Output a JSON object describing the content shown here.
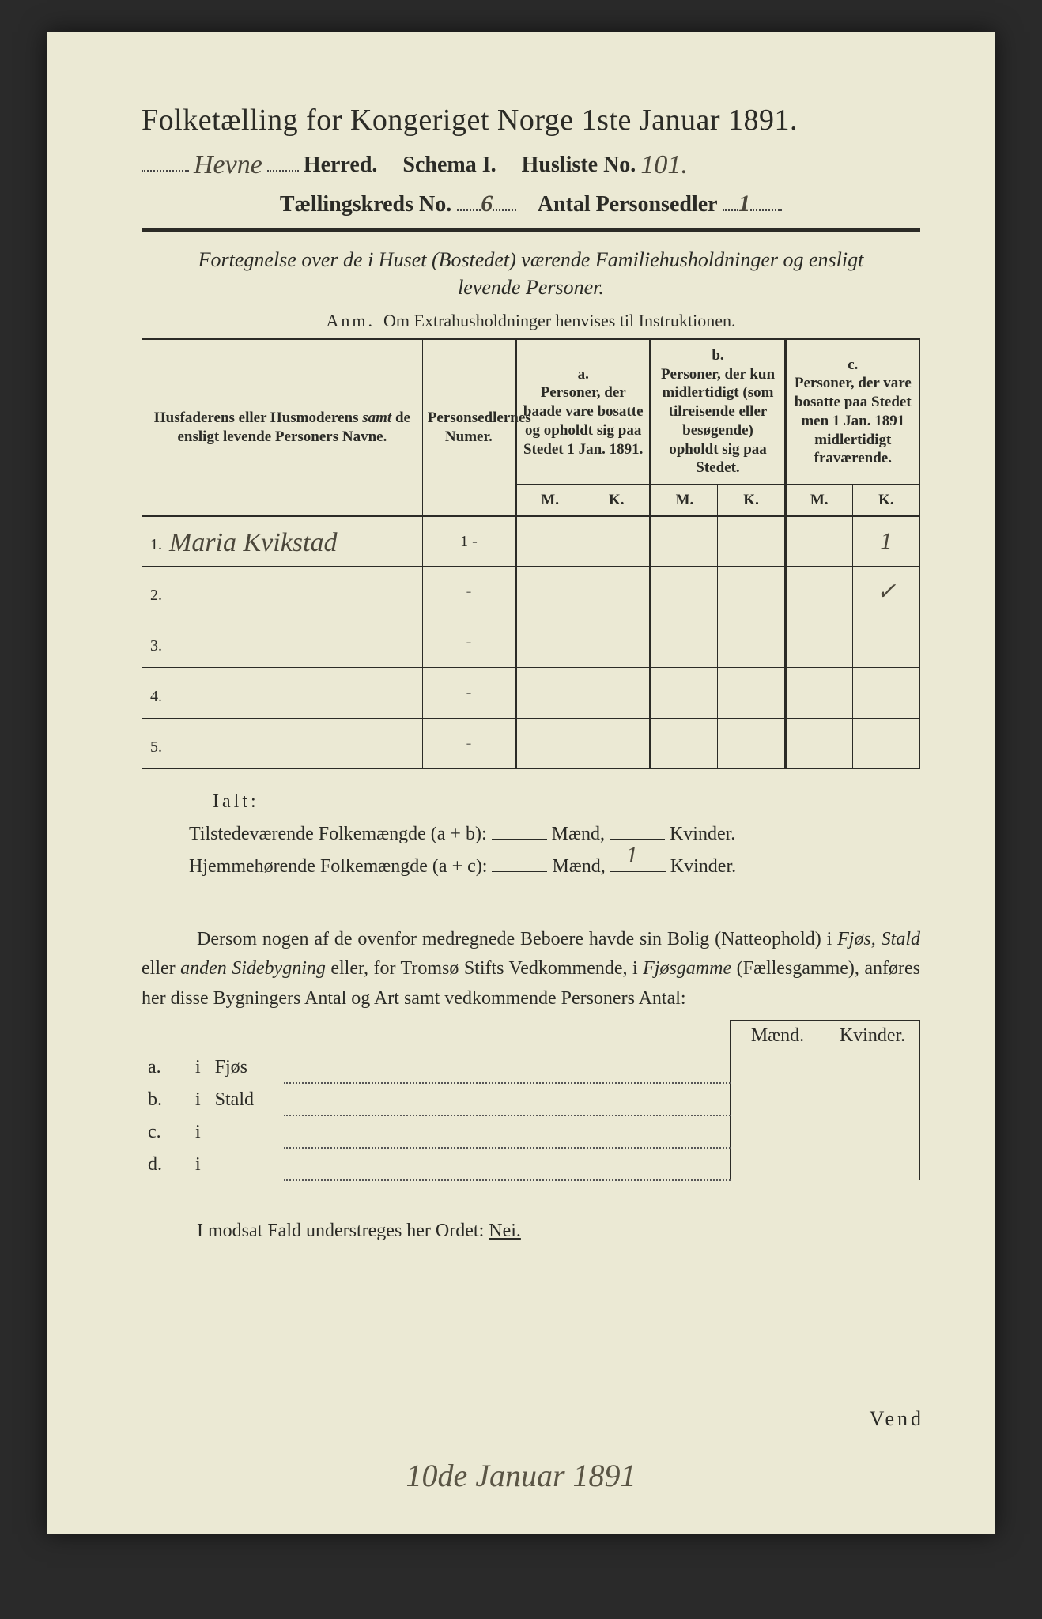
{
  "header": {
    "title": "Folketælling for Kongeriget Norge 1ste Januar 1891.",
    "herred_hand": "Hevne",
    "herred_label": "Herred.",
    "schema": "Schema I.",
    "husliste_label": "Husliste No.",
    "husliste_no": "101.",
    "kreds_label": "Tællingskreds No.",
    "kreds_no": "6",
    "personsedler_label": "Antal Personsedler",
    "personsedler_no": "1"
  },
  "subtitle_line1": "Fortegnelse over de i Huset (Bostedet) værende Familiehusholdninger og ensligt",
  "subtitle_line2": "levende Personer.",
  "anm_prefix": "Anm.",
  "anm_text": "Om Extrahusholdninger henvises til Instruktionen.",
  "table": {
    "col_names": "Husfaderens eller Husmoderens samt de ensligt levende Personers Navne.",
    "col_numer": "Personsedlernes Numer.",
    "col_a_label": "a.",
    "col_a": "Personer, der baade vare bosatte og opholdt sig paa Stedet 1 Jan. 1891.",
    "col_b_label": "b.",
    "col_b": "Personer, der kun midlertidigt (som tilreisende eller besøgende) opholdt sig paa Stedet.",
    "col_c_label": "c.",
    "col_c": "Personer, der vare bosatte paa Stedet men 1 Jan. 1891 midlertidigt fraværende.",
    "M": "M.",
    "K": "K.",
    "rows": [
      {
        "n": "1.",
        "name": "Maria Kvikstad",
        "num": "1",
        "aM": "",
        "aK": "",
        "bM": "",
        "bK": "",
        "cM": "",
        "cK": "1"
      },
      {
        "n": "2.",
        "name": "",
        "num": "",
        "aM": "",
        "aK": "",
        "bM": "",
        "bK": "",
        "cM": "",
        "cK": "✓"
      },
      {
        "n": "3.",
        "name": "",
        "num": "",
        "aM": "",
        "aK": "",
        "bM": "",
        "bK": "",
        "cM": "",
        "cK": ""
      },
      {
        "n": "4.",
        "name": "",
        "num": "",
        "aM": "",
        "aK": "",
        "bM": "",
        "bK": "",
        "cM": "",
        "cK": ""
      },
      {
        "n": "5.",
        "name": "",
        "num": "",
        "aM": "",
        "aK": "",
        "bM": "",
        "bK": "",
        "cM": "",
        "cK": ""
      }
    ]
  },
  "ialt": "Ialt:",
  "sum1_label": "Tilstedeværende Folkemængde (a + b):",
  "sum2_label": "Hjemmehørende Folkemængde (a + c):",
  "maend": "Mænd,",
  "kvinder": "Kvinder.",
  "sum2_kvinder_val": "1",
  "para": "Dersom nogen af de ovenfor medregnede Beboere havde sin Bolig (Natteophold) i Fjøs, Stald eller anden Sidebygning eller, for Tromsø Stifts Vedkommende, i Fjøsgamme (Fællesgamme), anføres her disse Bygningers Antal og Art samt vedkommende Personers Antal:",
  "side": {
    "maend": "Mænd.",
    "kvinder": "Kvinder.",
    "rows": [
      {
        "l": "a.",
        "i": "i",
        "p": "Fjøs"
      },
      {
        "l": "b.",
        "i": "i",
        "p": "Stald"
      },
      {
        "l": "c.",
        "i": "i",
        "p": ""
      },
      {
        "l": "d.",
        "i": "i",
        "p": ""
      }
    ]
  },
  "nei_text": "I modsat Fald understreges her Ordet:",
  "nei": "Nei.",
  "vend": "Vend",
  "bottom_date": "10de Januar 1891"
}
